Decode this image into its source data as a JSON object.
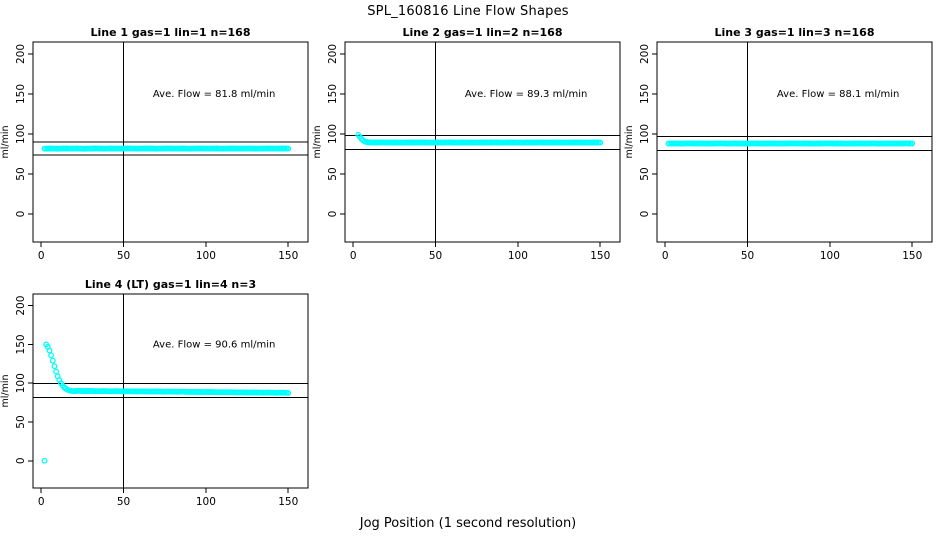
{
  "page": {
    "main_title": "SPL_160816  Line Flow Shapes",
    "x_axis_label": "Jog Position (1 second resolution)",
    "background_color": "#ffffff",
    "axis_color": "#000000",
    "point_color": "#00FFFF"
  },
  "chart_data": [
    {
      "type": "scatter",
      "title": "Line 1 gas=1 lin=1 n=168",
      "annotation": "Ave. Flow =  81.8  ml/min",
      "avg_flow_ml_min": 81.8,
      "ylabel": "ml/min",
      "x_ticks": [
        0,
        50,
        100,
        150
      ],
      "y_ticks": [
        0,
        50,
        100,
        150,
        200
      ],
      "xlim": [
        -5,
        162
      ],
      "ylim": [
        -35,
        215
      ],
      "vline_x": 50,
      "hlines": [
        90.0,
        73.6
      ],
      "marker": "open-circle",
      "marker_color": "#00FFFF",
      "grid": false,
      "points": [
        [
          2,
          81.6
        ],
        [
          6,
          81.9
        ],
        [
          10,
          81.5
        ],
        [
          14,
          82.0
        ],
        [
          18,
          81.7
        ],
        [
          22,
          81.9
        ],
        [
          26,
          81.5
        ],
        [
          30,
          81.8
        ],
        [
          34,
          82.0
        ],
        [
          38,
          81.6
        ],
        [
          42,
          81.9
        ],
        [
          46,
          81.7
        ],
        [
          50,
          81.8
        ],
        [
          54,
          82.0
        ],
        [
          58,
          81.6
        ],
        [
          62,
          81.8
        ],
        [
          66,
          81.9
        ],
        [
          70,
          81.6
        ],
        [
          74,
          81.8
        ],
        [
          78,
          82.0
        ],
        [
          82,
          81.7
        ],
        [
          86,
          81.9
        ],
        [
          90,
          81.6
        ],
        [
          94,
          81.8
        ],
        [
          98,
          82.0
        ],
        [
          102,
          81.7
        ],
        [
          106,
          81.9
        ],
        [
          110,
          81.6
        ],
        [
          114,
          81.8
        ],
        [
          118,
          81.9
        ],
        [
          122,
          81.7
        ],
        [
          126,
          82.0
        ],
        [
          130,
          81.6
        ],
        [
          134,
          81.8
        ],
        [
          138,
          81.9
        ],
        [
          142,
          81.7
        ],
        [
          146,
          81.9
        ],
        [
          150,
          81.8
        ]
      ]
    },
    {
      "type": "scatter",
      "title": "Line 2 gas=1 lin=2 n=168",
      "annotation": "Ave. Flow =  89.3  ml/min",
      "avg_flow_ml_min": 89.3,
      "ylabel": "ml/min",
      "x_ticks": [
        0,
        50,
        100,
        150
      ],
      "y_ticks": [
        0,
        50,
        100,
        150,
        200
      ],
      "xlim": [
        -5,
        162
      ],
      "ylim": [
        -35,
        215
      ],
      "vline_x": 50,
      "hlines": [
        98.2,
        80.4
      ],
      "marker": "open-circle",
      "marker_color": "#00FFFF",
      "grid": false,
      "points": [
        [
          3,
          99.0
        ],
        [
          4,
          96.5
        ],
        [
          5,
          94.0
        ],
        [
          6,
          92.0
        ],
        [
          7,
          90.8
        ],
        [
          8,
          90.0
        ],
        [
          9,
          89.7
        ],
        [
          10,
          89.5
        ],
        [
          14,
          89.4
        ],
        [
          18,
          89.5
        ],
        [
          22,
          89.3
        ],
        [
          26,
          89.4
        ],
        [
          30,
          89.2
        ],
        [
          34,
          89.4
        ],
        [
          38,
          89.3
        ],
        [
          42,
          89.5
        ],
        [
          46,
          89.2
        ],
        [
          50,
          89.4
        ],
        [
          54,
          89.3
        ],
        [
          58,
          89.5
        ],
        [
          62,
          89.2
        ],
        [
          66,
          89.4
        ],
        [
          70,
          89.3
        ],
        [
          74,
          89.2
        ],
        [
          78,
          89.4
        ],
        [
          82,
          89.3
        ],
        [
          86,
          89.5
        ],
        [
          90,
          89.2
        ],
        [
          94,
          89.4
        ],
        [
          98,
          89.3
        ],
        [
          102,
          89.2
        ],
        [
          106,
          89.4
        ],
        [
          110,
          89.3
        ],
        [
          114,
          89.5
        ],
        [
          118,
          89.2
        ],
        [
          122,
          89.4
        ],
        [
          126,
          89.3
        ],
        [
          130,
          89.2
        ],
        [
          134,
          89.4
        ],
        [
          138,
          89.3
        ],
        [
          142,
          89.2
        ],
        [
          146,
          89.4
        ],
        [
          150,
          89.3
        ]
      ]
    },
    {
      "type": "scatter",
      "title": "Line 3 gas=1 lin=3 n=168",
      "annotation": "Ave. Flow =  88.1  ml/min",
      "avg_flow_ml_min": 88.1,
      "ylabel": "ml/min",
      "x_ticks": [
        0,
        50,
        100,
        150
      ],
      "y_ticks": [
        0,
        50,
        100,
        150,
        200
      ],
      "xlim": [
        -5,
        162
      ],
      "ylim": [
        -35,
        215
      ],
      "vline_x": 50,
      "hlines": [
        96.9,
        79.3
      ],
      "marker": "open-circle",
      "marker_color": "#00FFFF",
      "grid": false,
      "points": [
        [
          2,
          88.0
        ],
        [
          6,
          88.2
        ],
        [
          10,
          87.9
        ],
        [
          14,
          88.3
        ],
        [
          18,
          88.0
        ],
        [
          22,
          88.2
        ],
        [
          26,
          87.9
        ],
        [
          30,
          88.1
        ],
        [
          34,
          88.3
        ],
        [
          38,
          87.9
        ],
        [
          42,
          88.2
        ],
        [
          46,
          88.0
        ],
        [
          50,
          88.1
        ],
        [
          54,
          88.3
        ],
        [
          58,
          87.9
        ],
        [
          62,
          88.1
        ],
        [
          66,
          88.2
        ],
        [
          70,
          87.9
        ],
        [
          74,
          88.1
        ],
        [
          78,
          88.3
        ],
        [
          82,
          88.0
        ],
        [
          86,
          88.2
        ],
        [
          90,
          87.9
        ],
        [
          94,
          88.1
        ],
        [
          98,
          88.3
        ],
        [
          102,
          88.0
        ],
        [
          106,
          88.2
        ],
        [
          110,
          87.9
        ],
        [
          114,
          88.1
        ],
        [
          118,
          88.2
        ],
        [
          122,
          88.0
        ],
        [
          126,
          88.3
        ],
        [
          130,
          87.9
        ],
        [
          134,
          88.1
        ],
        [
          138,
          88.2
        ],
        [
          142,
          88.0
        ],
        [
          146,
          88.2
        ],
        [
          150,
          88.1
        ]
      ]
    },
    {
      "type": "scatter",
      "title": "Line 4 (LT) gas=1 lin=4 n=3",
      "annotation": "Ave. Flow =  90.6  ml/min",
      "avg_flow_ml_min": 90.6,
      "ylabel": "ml/min",
      "x_ticks": [
        0,
        50,
        100,
        150
      ],
      "y_ticks": [
        0,
        50,
        100,
        150,
        200
      ],
      "xlim": [
        -5,
        162
      ],
      "ylim": [
        -35,
        215
      ],
      "vline_x": 50,
      "hlines": [
        99.7,
        81.5
      ],
      "marker": "open-circle",
      "marker_color": "#00FFFF",
      "grid": false,
      "points": [
        [
          2,
          0
        ],
        [
          3,
          150
        ],
        [
          4,
          147
        ],
        [
          5,
          142
        ],
        [
          6,
          136
        ],
        [
          7,
          129
        ],
        [
          8,
          122
        ],
        [
          9,
          115
        ],
        [
          10,
          109
        ],
        [
          11,
          104
        ],
        [
          12,
          100
        ],
        [
          13,
          97
        ],
        [
          14,
          94.5
        ],
        [
          15,
          92.8
        ],
        [
          16,
          91.6
        ],
        [
          17,
          90.8
        ],
        [
          18,
          90.2
        ],
        [
          19,
          89.9
        ],
        [
          20,
          89.7
        ],
        [
          22,
          90.3
        ],
        [
          26,
          89.9
        ],
        [
          30,
          90.1
        ],
        [
          34,
          89.7
        ],
        [
          38,
          89.9
        ],
        [
          42,
          89.6
        ],
        [
          46,
          89.8
        ],
        [
          50,
          89.5
        ],
        [
          54,
          89.6
        ],
        [
          58,
          89.4
        ],
        [
          62,
          89.5
        ],
        [
          66,
          89.2
        ],
        [
          70,
          89.4
        ],
        [
          74,
          89.1
        ],
        [
          78,
          89.2
        ],
        [
          82,
          89.0
        ],
        [
          86,
          89.1
        ],
        [
          90,
          88.8
        ],
        [
          94,
          88.9
        ],
        [
          98,
          88.6
        ],
        [
          102,
          88.7
        ],
        [
          106,
          88.5
        ],
        [
          110,
          88.4
        ],
        [
          114,
          88.5
        ],
        [
          118,
          88.2
        ],
        [
          122,
          88.3
        ],
        [
          126,
          88.0
        ],
        [
          130,
          88.1
        ],
        [
          134,
          87.8
        ],
        [
          138,
          87.9
        ],
        [
          142,
          87.7
        ],
        [
          146,
          87.8
        ],
        [
          150,
          87.6
        ]
      ]
    }
  ]
}
